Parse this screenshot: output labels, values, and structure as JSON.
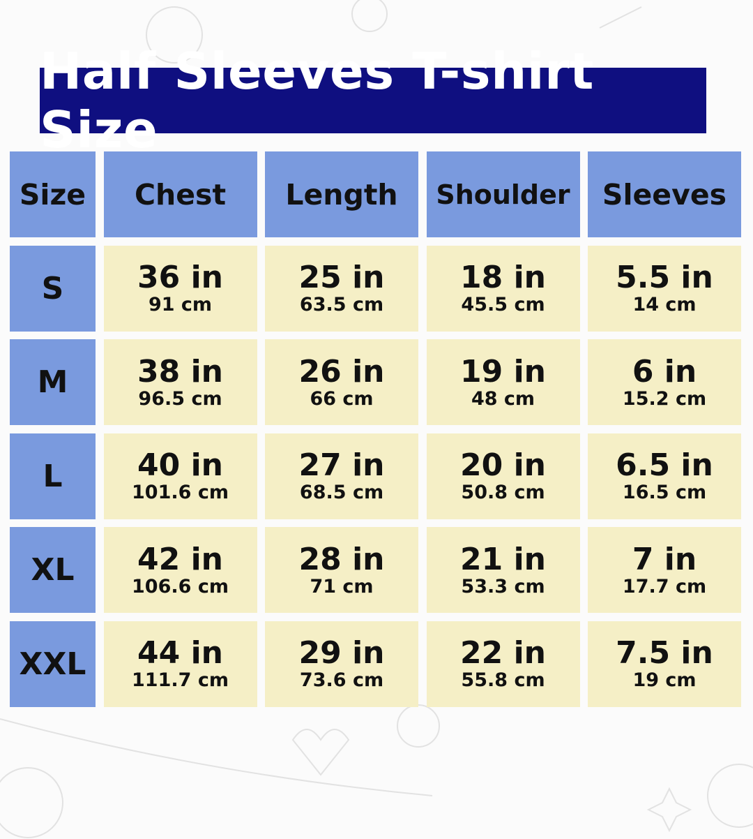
{
  "title": "Half Sleeves T-shirt Size",
  "colors": {
    "title_bg": "#0f0f80",
    "header_bg": "#7a9ade",
    "cell_bg": "#f5efc6"
  },
  "headers": [
    "Size",
    "Chest",
    "Length",
    "Shoulder",
    "Sleeves"
  ],
  "rows": [
    {
      "size": "S",
      "cells": [
        [
          "36 in",
          "91 cm"
        ],
        [
          "25 in",
          "63.5 cm"
        ],
        [
          "18 in",
          "45.5 cm"
        ],
        [
          "5.5 in",
          "14 cm"
        ]
      ]
    },
    {
      "size": "M",
      "cells": [
        [
          "38 in",
          "96.5 cm"
        ],
        [
          "26 in",
          "66 cm"
        ],
        [
          "19 in",
          "48 cm"
        ],
        [
          "6 in",
          "15.2 cm"
        ]
      ]
    },
    {
      "size": "L",
      "cells": [
        [
          "40 in",
          "101.6 cm"
        ],
        [
          "27 in",
          "68.5 cm"
        ],
        [
          "20 in",
          "50.8 cm"
        ],
        [
          "6.5 in",
          "16.5 cm"
        ]
      ]
    },
    {
      "size": "XL",
      "cells": [
        [
          "42 in",
          "106.6 cm"
        ],
        [
          "28 in",
          "71 cm"
        ],
        [
          "21 in",
          "53.3 cm"
        ],
        [
          "7 in",
          "17.7 cm"
        ]
      ]
    },
    {
      "size": "XXL",
      "cells": [
        [
          "44 in",
          "111.7 cm"
        ],
        [
          "29 in",
          "73.6 cm"
        ],
        [
          "22 in",
          "55.8 cm"
        ],
        [
          "7.5 in",
          "19 cm"
        ]
      ]
    }
  ]
}
